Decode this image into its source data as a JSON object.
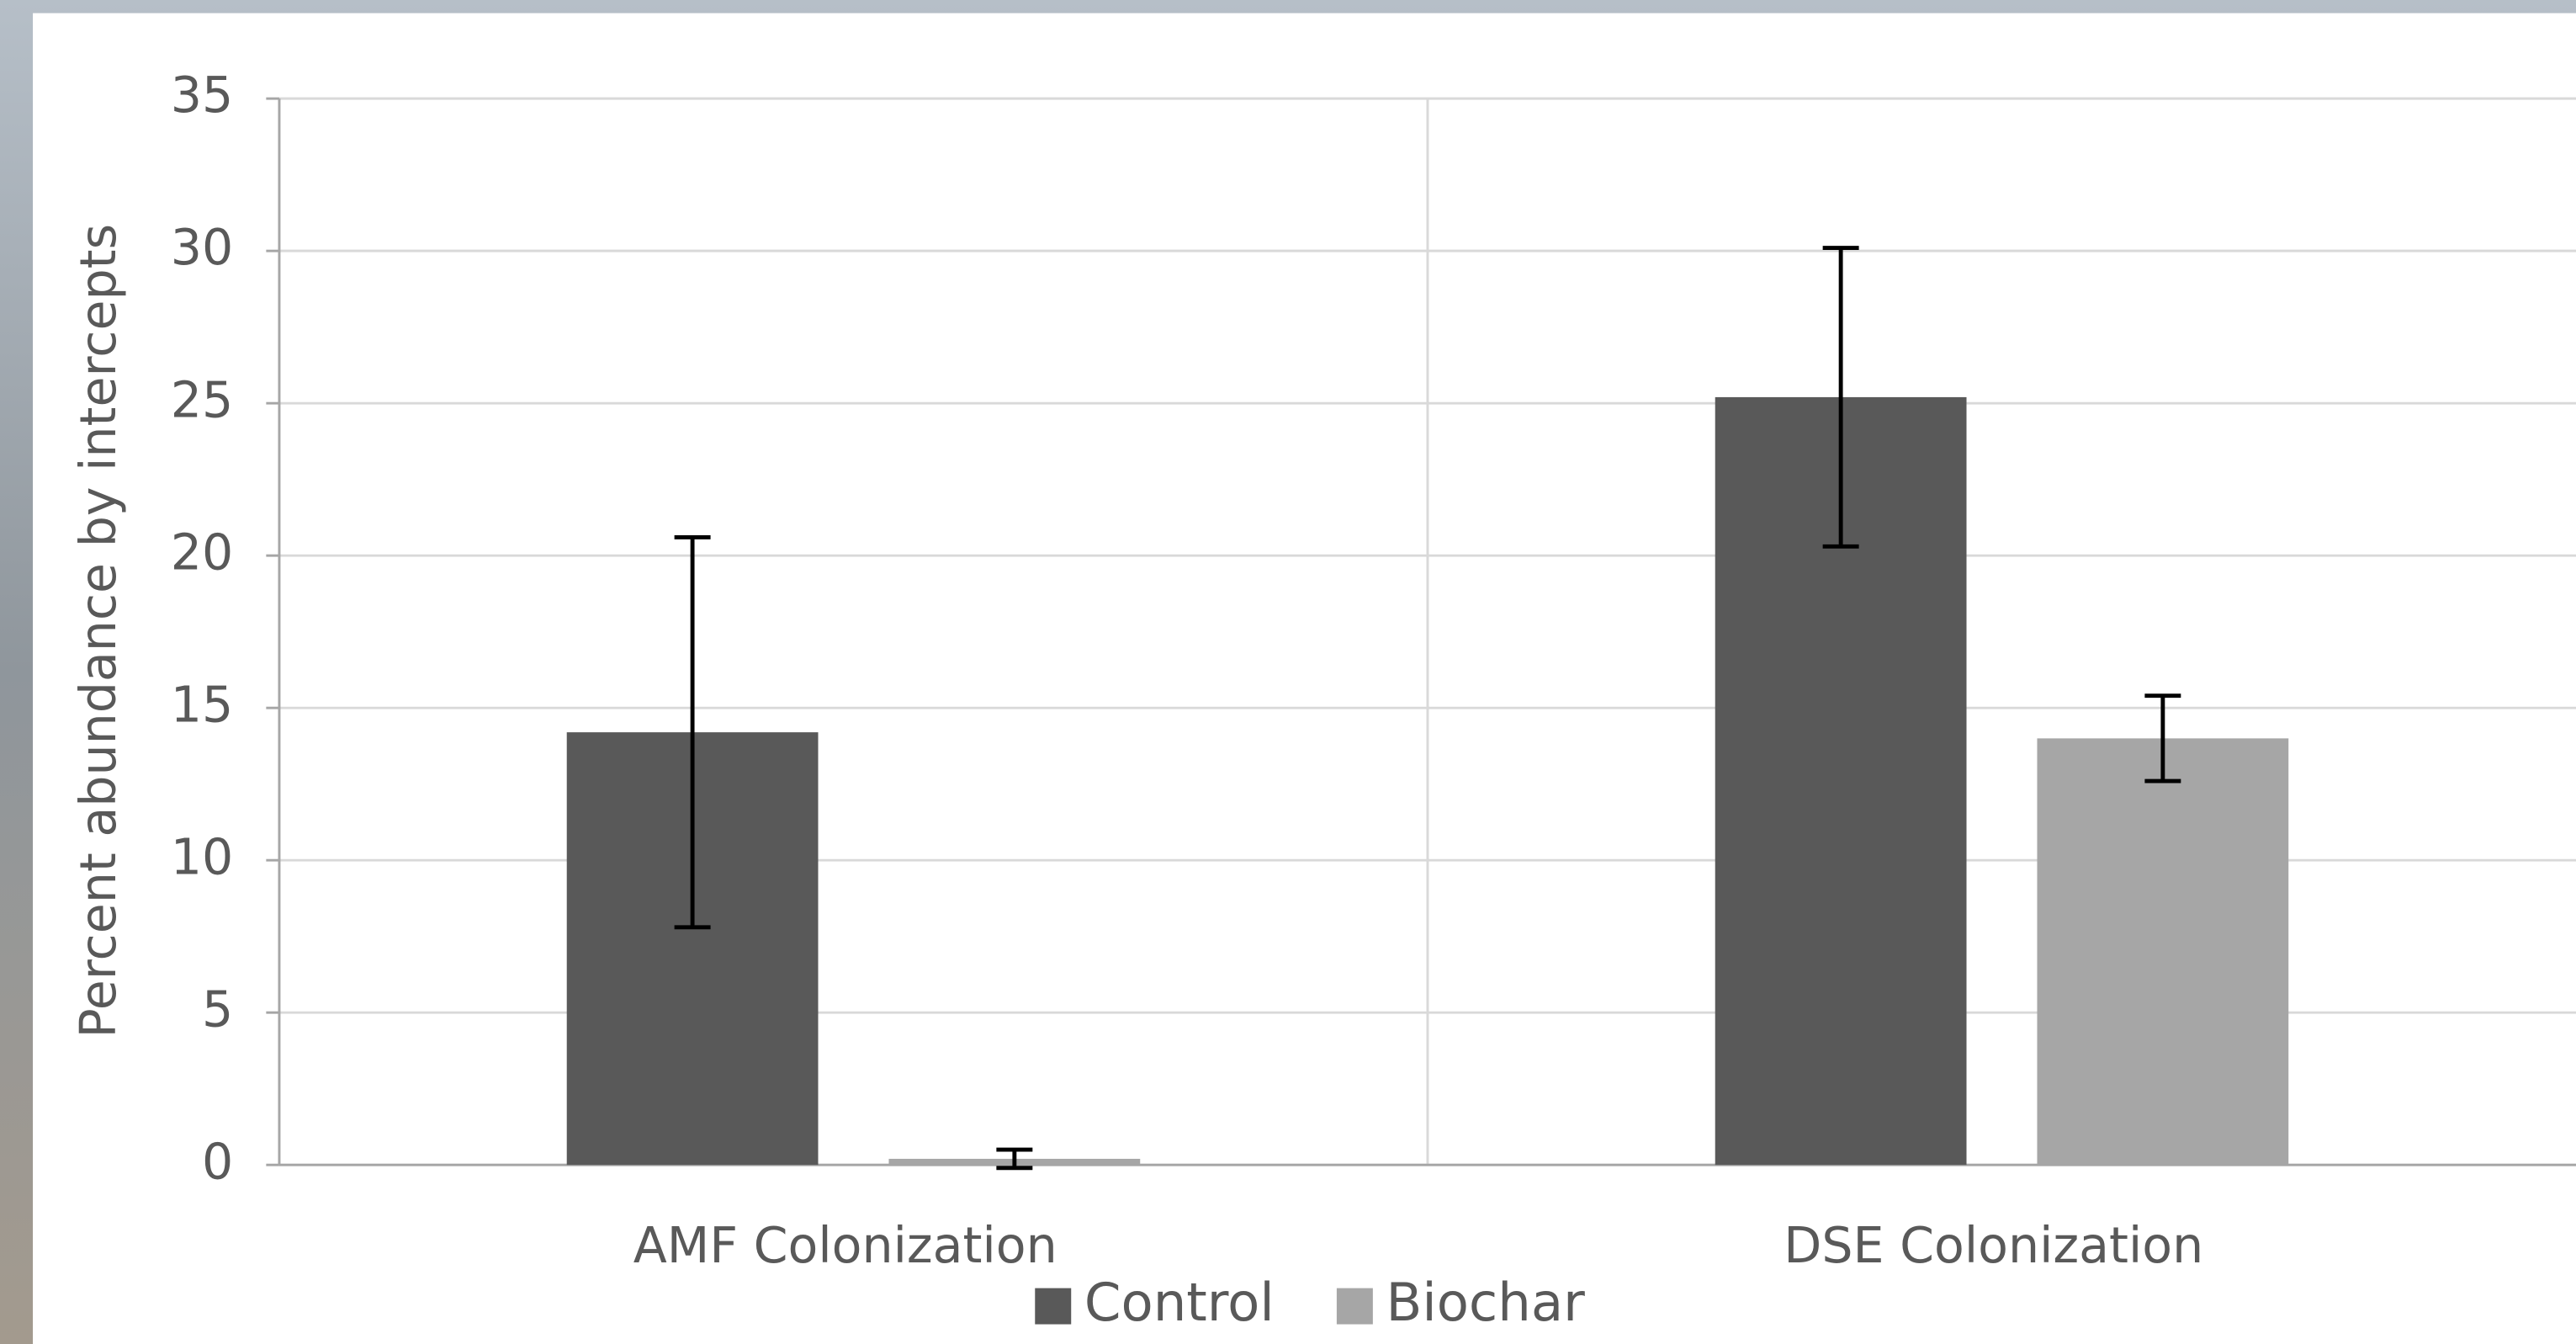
{
  "chart_data": {
    "type": "bar",
    "y_label": "Percent abundance by intercepts",
    "categories": [
      "AMF Colonization",
      "DSE Colonization"
    ],
    "series": [
      {
        "name": "Control",
        "color": "#595959",
        "values": [
          14.2,
          25.2
        ],
        "errors": [
          6.4,
          4.9
        ]
      },
      {
        "name": "Biochar",
        "color": "#a6a6a6",
        "values": [
          0.2,
          14.0
        ],
        "errors": [
          0.3,
          1.4
        ]
      }
    ],
    "ylim": [
      0,
      35
    ],
    "yticks": [
      0,
      5,
      10,
      15,
      20,
      25,
      30,
      35
    ],
    "grid": true,
    "legend": "bottom"
  }
}
